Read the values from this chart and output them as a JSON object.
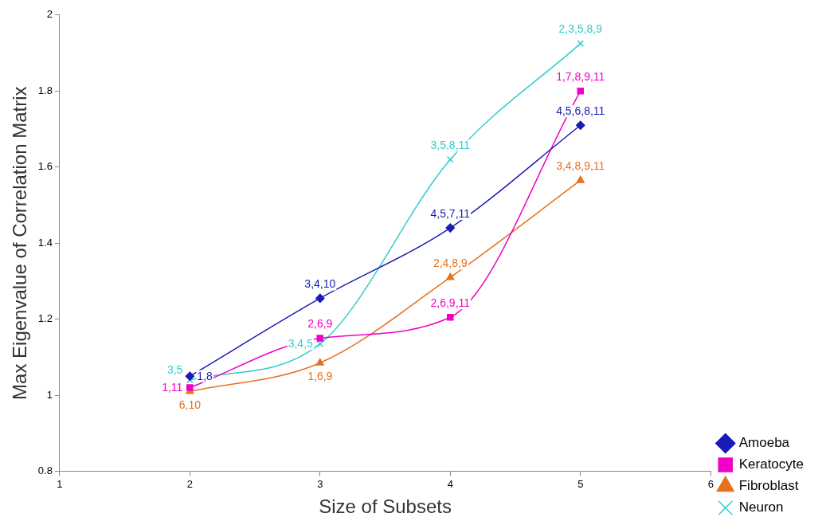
{
  "chart_data": {
    "type": "line",
    "xlabel": "Size of Subsets",
    "ylabel": "Max Eigenvalue of Correlation Matrix",
    "x": [
      2,
      3,
      4,
      5
    ],
    "xlim": [
      1,
      6
    ],
    "xticks": [
      1,
      2,
      3,
      4,
      5,
      6
    ],
    "ylim": [
      0.8,
      2
    ],
    "yticks": [
      0.8,
      1,
      1.2,
      1.4,
      1.6,
      1.8,
      2
    ],
    "grid": false,
    "legend": "right",
    "series": [
      {
        "name": "Amoeba",
        "color": "#1a1ab4",
        "marker": "diamond",
        "values": [
          1.05,
          1.255,
          1.44,
          1.71
        ]
      },
      {
        "name": "Keratocyte",
        "color": "#f000c8",
        "marker": "square",
        "values": [
          1.02,
          1.15,
          1.205,
          1.8
        ]
      },
      {
        "name": "Fibroblast",
        "color": "#e8701e",
        "marker": "triangle",
        "values": [
          1.01,
          1.085,
          1.31,
          1.565
        ]
      },
      {
        "name": "Neuron",
        "color": "#33cccc",
        "marker": "cross",
        "values": [
          1.04,
          1.135,
          1.62,
          1.925
        ]
      }
    ],
    "annotations": [
      {
        "text": "1,8",
        "x": 2,
        "y": 1.05
      },
      {
        "text": "3,4,10",
        "x": 3,
        "y": 1.255
      },
      {
        "text": "4,5,7,11",
        "x": 4,
        "y": 1.44
      },
      {
        "text": "4,5,6,8,11",
        "x": 5,
        "y": 1.71
      },
      {
        "text": "1,11",
        "x": 2,
        "y": 1.02
      },
      {
        "text": "2,6,9",
        "x": 3,
        "y": 1.15
      },
      {
        "text": "2,6,9,11",
        "x": 4,
        "y": 1.205
      },
      {
        "text": "1,7,8,9,11",
        "x": 5,
        "y": 1.8
      },
      {
        "text": "6,10",
        "x": 2,
        "y": 1.01
      },
      {
        "text": "1,6,9",
        "x": 3,
        "y": 1.085
      },
      {
        "text": "2,4,8,9",
        "x": 4,
        "y": 1.31
      },
      {
        "text": "3,4,8,9,11",
        "x": 5,
        "y": 1.565
      },
      {
        "text": "3,5",
        "x": 2,
        "y": 1.04
      },
      {
        "text": "3,4,5",
        "x": 3,
        "y": 1.135
      },
      {
        "text": "3,5,8,11",
        "x": 4,
        "y": 1.62
      },
      {
        "text": "2,3,5,8,9",
        "x": 5,
        "y": 1.925
      }
    ]
  }
}
